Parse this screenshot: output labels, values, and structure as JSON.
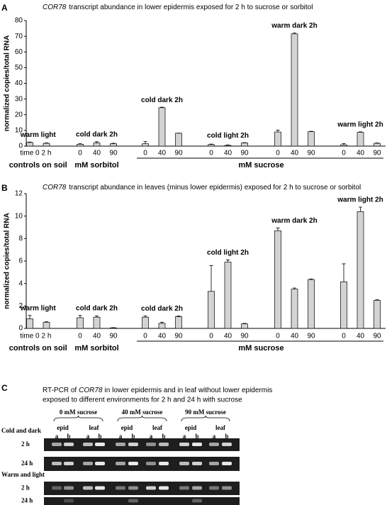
{
  "chart_data": [
    {
      "type": "bar",
      "panel": "A",
      "title_gene": "COR78",
      "title": "transcript abundance in lower epidermis exposed for 2 h to sucrose or sorbitol",
      "ylabel": "normalized copies/total RNA",
      "ylim": [
        0,
        80
      ],
      "yticks": [
        0,
        10,
        20,
        30,
        40,
        50,
        60,
        70,
        80
      ],
      "color": "#d3d3d3",
      "sections": [
        {
          "label": "controls on soil",
          "groups": [
            {
              "label": "warm light",
              "categories": [
                "time 0",
                "2 h"
              ],
              "values": [
                2.3,
                1.8
              ],
              "errors": [
                0.3,
                0.2
              ]
            }
          ]
        },
        {
          "label": "mM sorbitol",
          "groups": [
            {
              "label": "cold dark 2h",
              "categories": [
                "0",
                "40",
                "90"
              ],
              "values": [
                1.2,
                2.0,
                1.5
              ],
              "errors": [
                0.5,
                0.8,
                0.3
              ]
            }
          ]
        },
        {
          "label": "mM sucrose",
          "groups": [
            {
              "label": "cold dark 2h",
              "categories": [
                "0",
                "40",
                "90"
              ],
              "values": [
                1.5,
                24.5,
                8.2
              ],
              "errors": [
                1.5,
                0.3,
                0.1
              ]
            },
            {
              "label": "cold light 2h",
              "categories": [
                "0",
                "40",
                "90"
              ],
              "values": [
                1.0,
                0.5,
                2.0
              ],
              "errors": [
                0.3,
                0.2,
                0.2
              ]
            },
            {
              "label": "warm dark 2h",
              "categories": [
                "0",
                "40",
                "90"
              ],
              "values": [
                9.0,
                71.5,
                9.2
              ],
              "errors": [
                1.2,
                0.6,
                0.2
              ]
            },
            {
              "label": "warm light 2h",
              "categories": [
                "0",
                "40",
                "90"
              ],
              "values": [
                0.8,
                8.8,
                1.8
              ],
              "errors": [
                0.8,
                0.3,
                0.2
              ]
            }
          ]
        }
      ]
    },
    {
      "type": "bar",
      "panel": "B",
      "title_gene": "COR78",
      "title": "transcript abundance in leaves (minus lower epidermis) exposed for 2 h to sucrose or sorbitol",
      "ylabel": "normalized copies/total RNA",
      "ylim": [
        0,
        12
      ],
      "yticks": [
        0,
        2,
        4,
        6,
        8,
        10,
        12
      ],
      "color": "#d3d3d3",
      "sections": [
        {
          "label": "controls on soil",
          "groups": [
            {
              "label": "warm light",
              "categories": [
                "time 0",
                "2 h"
              ],
              "values": [
                0.85,
                0.55
              ],
              "errors": [
                0.3,
                0.05
              ]
            }
          ]
        },
        {
          "label": "mM sorbitol",
          "groups": [
            {
              "label": "cold dark 2h",
              "categories": [
                "0",
                "40",
                "90"
              ],
              "values": [
                0.95,
                1.0,
                0.05
              ],
              "errors": [
                0.2,
                0.1,
                0.02
              ]
            }
          ]
        },
        {
          "label": "mM sucrose",
          "groups": [
            {
              "label": "cold dark 2h",
              "categories": [
                "0",
                "40",
                "90"
              ],
              "values": [
                1.0,
                0.45,
                1.05
              ],
              "errors": [
                0.1,
                0.1,
                0.05
              ]
            },
            {
              "label": "cold light 2h",
              "categories": [
                "0",
                "40",
                "90"
              ],
              "values": [
                3.3,
                5.9,
                0.4
              ],
              "errors": [
                2.3,
                0.2,
                0.05
              ]
            },
            {
              "label": "warm dark 2h",
              "categories": [
                "0",
                "40",
                "90"
              ],
              "values": [
                8.7,
                3.5,
                4.35
              ],
              "errors": [
                0.25,
                0.1,
                0.05
              ]
            },
            {
              "label": "warm light 2h",
              "categories": [
                "0",
                "40",
                "90"
              ],
              "values": [
                4.15,
                10.4,
                2.5
              ],
              "errors": [
                1.6,
                0.4,
                0.05
              ]
            }
          ]
        }
      ]
    }
  ],
  "panel_c": {
    "panel": "C",
    "line1_a": "RT-PCR of",
    "line1_gene": "COR78",
    "line1_b": "in lower epidermis and in leaf without lower epidermis",
    "line2": "exposed to different environments for 2 h and 24 h with sucrose",
    "treatments": [
      "0 mM sucrose",
      "40 mM sucrose",
      "90 mM sucrose"
    ],
    "tissues": [
      "epid",
      "leaf"
    ],
    "replicates": [
      "a",
      "b"
    ],
    "conditions": [
      {
        "label": "Cold and dark",
        "times": [
          "2 h",
          "24 h"
        ]
      },
      {
        "label": "Warm and light",
        "times": [
          "2 h",
          "24 h"
        ]
      }
    ]
  }
}
